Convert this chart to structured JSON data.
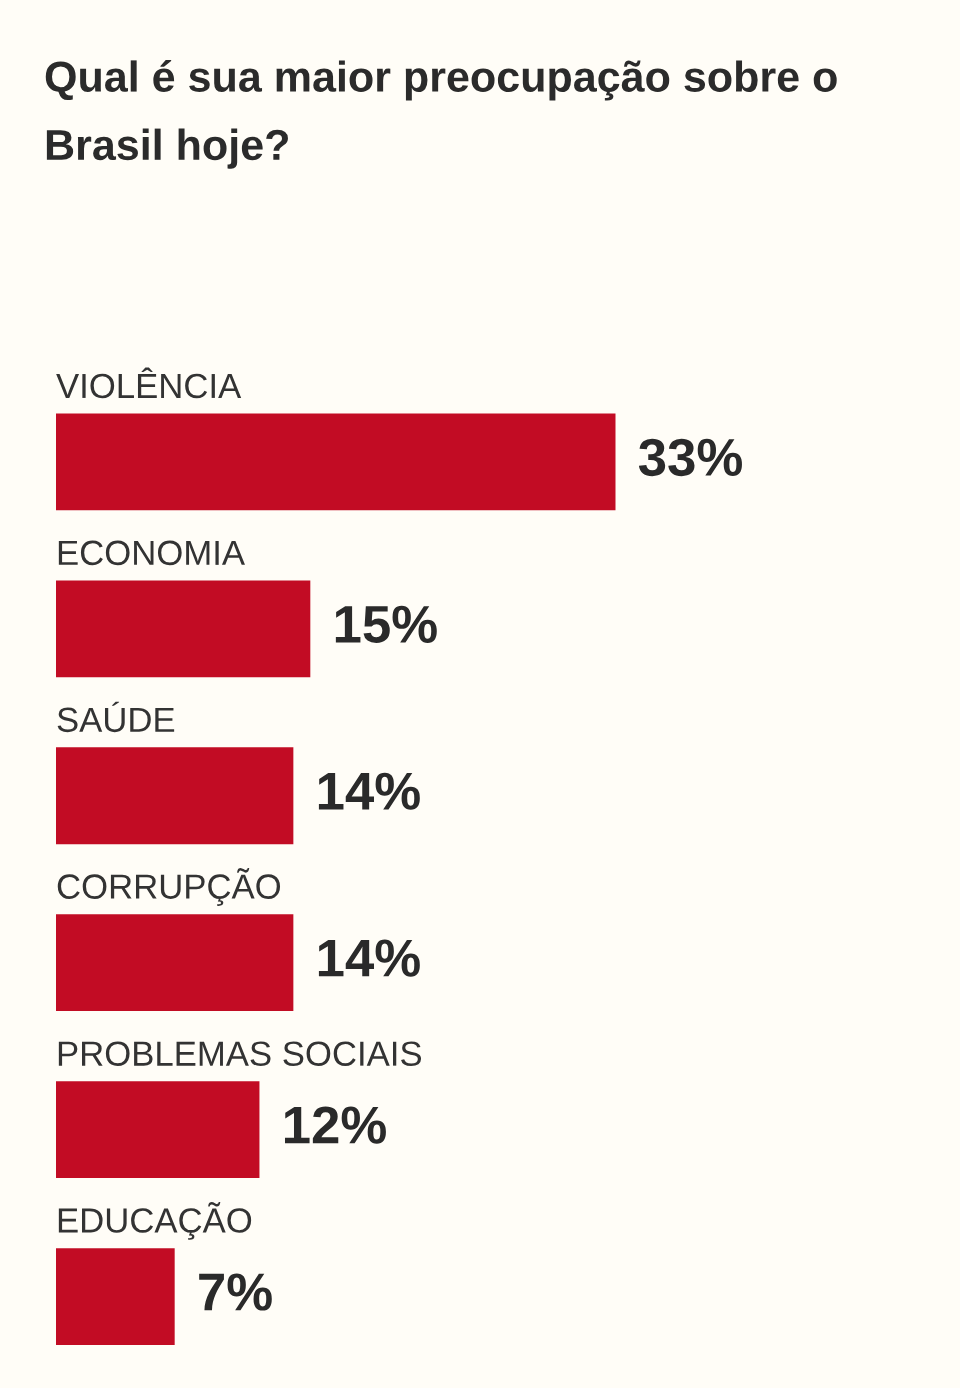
{
  "chart_data": {
    "type": "bar",
    "orientation": "horizontal",
    "title": "Qual é sua maior preocupação sobre o\nBrasil hoje?",
    "categories": [
      "VIOLÊNCIA",
      "ECONOMIA",
      "SAÚDE",
      "CORRUPÇÃO",
      "PROBLEMAS SOCIAIS",
      "EDUCAÇÃO"
    ],
    "values": [
      33,
      15,
      14,
      14,
      12,
      7
    ],
    "value_labels": [
      "33%",
      "15%",
      "14%",
      "14%",
      "12%",
      "7%"
    ],
    "color": "#c20c24"
  }
}
